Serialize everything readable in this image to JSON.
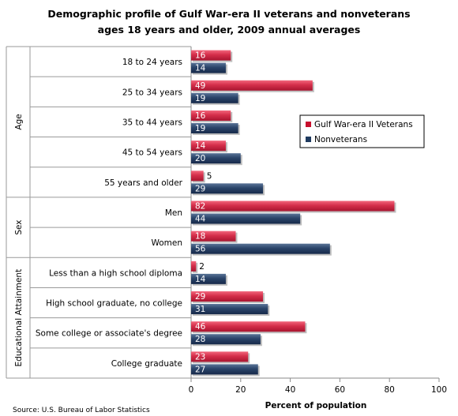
{
  "chart_data": {
    "type": "bar",
    "orientation": "horizontal",
    "title": "Demographic profile of Gulf War-era II veterans and nonveterans",
    "subtitle": "ages 18 years and older, 2009 annual averages",
    "xlabel": "Percent of population",
    "xlim": [
      0,
      100
    ],
    "xticks": [
      0,
      20,
      40,
      60,
      80,
      100
    ],
    "grid": false,
    "legend_position": "right",
    "source": "Source: U.S. Bureau of Labor Statistics",
    "groups": [
      {
        "label": "Age",
        "categories": [
          "18 to 24 years",
          "25 to 34 years",
          "35 to 44 years",
          "45 to 54 years",
          "55 years and older"
        ]
      },
      {
        "label": "Sex",
        "categories": [
          "Men",
          "Women"
        ]
      },
      {
        "label": "Educational Attainment",
        "categories": [
          "Less than a high school diploma",
          "High school graduate, no college",
          "Some college or associate's  degree",
          "College graduate"
        ]
      }
    ],
    "categories": [
      "18 to 24 years",
      "25 to 34 years",
      "35 to 44 years",
      "45 to 54 years",
      "55 years and older",
      "Men",
      "Women",
      "Less than a high school diploma",
      "High school graduate, no college",
      "Some college or associate's  degree",
      "College graduate"
    ],
    "series": [
      {
        "name": "Gulf War-era II Veterans",
        "color": "#d42e4a",
        "values": [
          16,
          49,
          16,
          14,
          5,
          82,
          18,
          2,
          29,
          46,
          23
        ]
      },
      {
        "name": "Nonveterans",
        "color": "#2a4469",
        "values": [
          14,
          19,
          19,
          20,
          29,
          44,
          56,
          14,
          31,
          28,
          27
        ]
      }
    ]
  }
}
